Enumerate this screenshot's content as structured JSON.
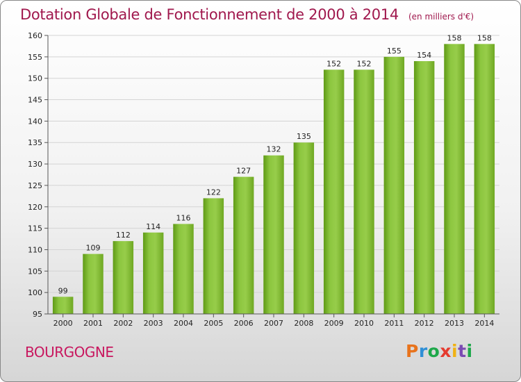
{
  "chart_data": {
    "type": "bar",
    "title": "Dotation Globale de Fonctionnement de 2000 à 2014",
    "unit": "(en milliers d'€)",
    "categories": [
      "2000",
      "2001",
      "2002",
      "2003",
      "2004",
      "2005",
      "2006",
      "2007",
      "2008",
      "2009",
      "2010",
      "2011",
      "2012",
      "2013",
      "2014"
    ],
    "values": [
      99,
      109,
      112,
      114,
      116,
      122,
      127,
      132,
      135,
      152,
      152,
      155,
      154,
      158,
      158
    ],
    "ylim": [
      95,
      160
    ],
    "yticks": [
      95,
      100,
      105,
      110,
      115,
      120,
      125,
      130,
      135,
      140,
      145,
      150,
      155,
      160
    ],
    "grid": true,
    "bar_color": "#7cba2c",
    "title_color": "#a0184d"
  },
  "footer": {
    "region": "BOURGOGNE",
    "logo": [
      "P",
      "r",
      "o",
      "x",
      "i",
      "t",
      "i"
    ],
    "logo_colors": [
      "#e8731c",
      "#2f8fd6",
      "#1ea84a",
      "#e53b2f",
      "#f0b114",
      "#7b4bb3",
      "#1ea84a"
    ]
  }
}
